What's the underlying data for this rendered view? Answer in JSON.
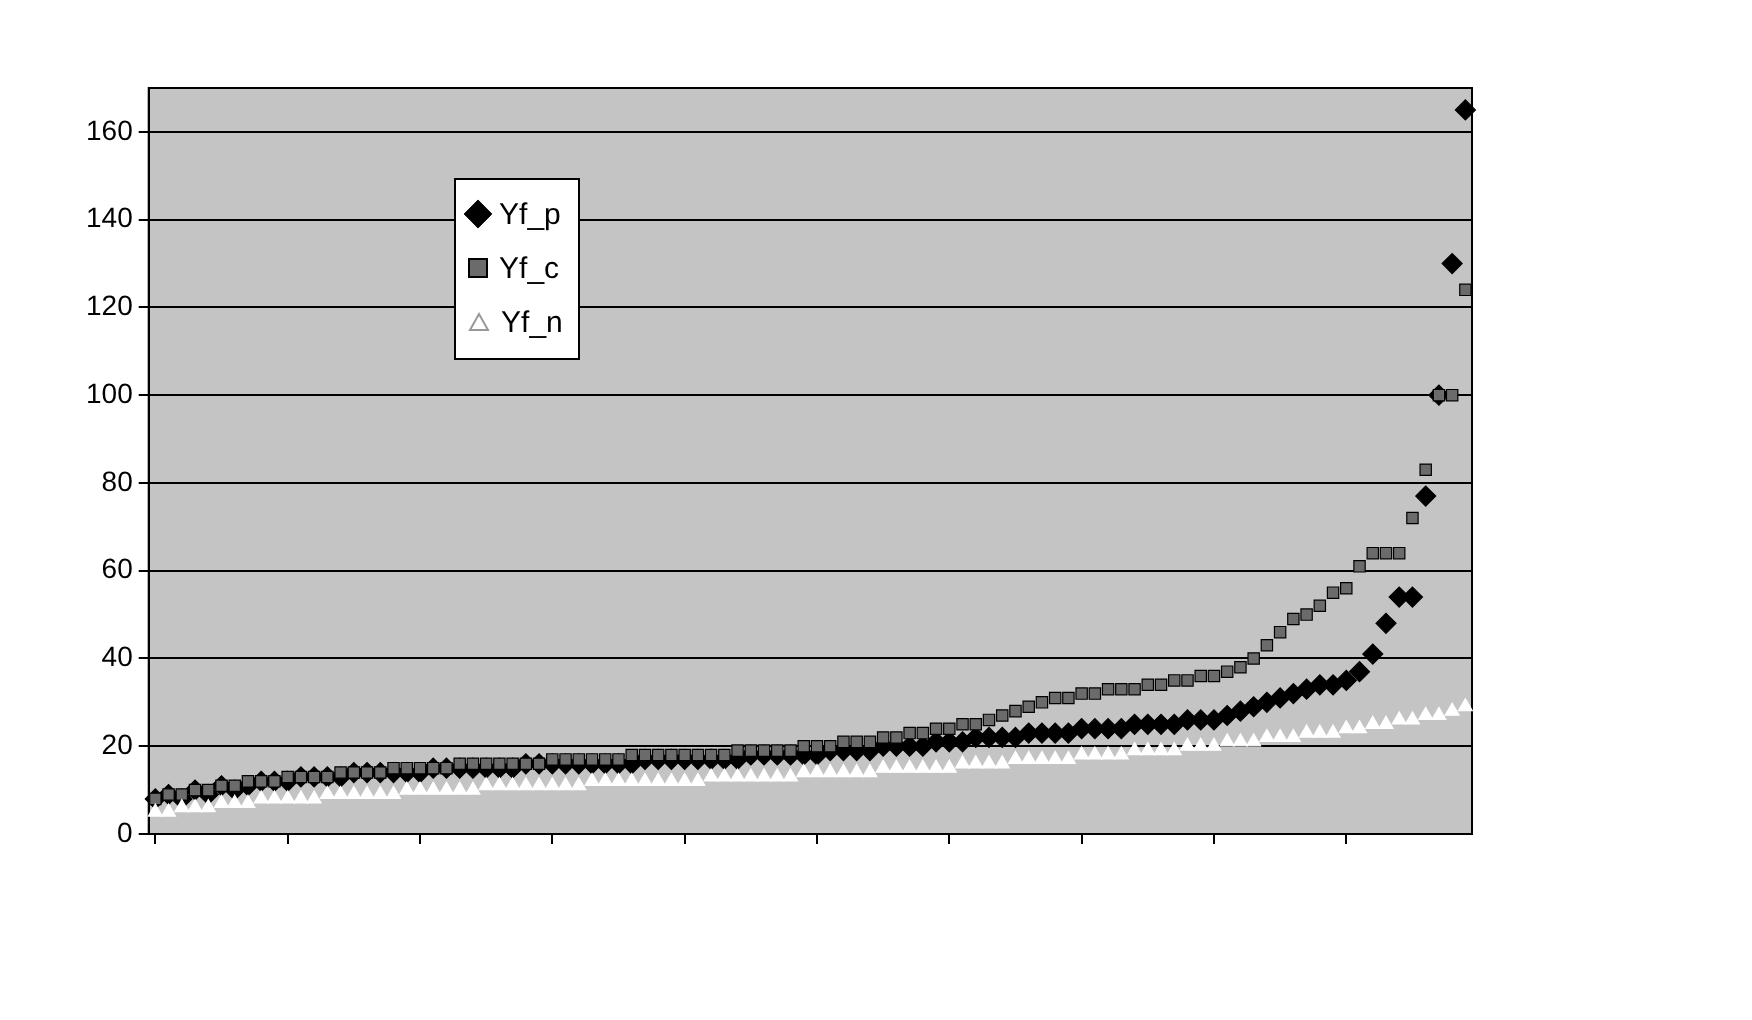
{
  "chart_data": {
    "type": "scatter",
    "categories": [
      null,
      null,
      null,
      null,
      null,
      null,
      null,
      null,
      null,
      null,
      null,
      null,
      null,
      null,
      null,
      null,
      null,
      null,
      null,
      null,
      null,
      null,
      null,
      null,
      null,
      null,
      null,
      null,
      null,
      null,
      null,
      null,
      null,
      null,
      null,
      null,
      null,
      null,
      null,
      null,
      null,
      null,
      null,
      null,
      null,
      null,
      null,
      null,
      null,
      null,
      null,
      null,
      null,
      null,
      null,
      null,
      null,
      null,
      null,
      null,
      null,
      null,
      null,
      null,
      null,
      null,
      null,
      null,
      null,
      null,
      null,
      null,
      null,
      null,
      null,
      null,
      null,
      null,
      null,
      null,
      null,
      null,
      null,
      null,
      null,
      null,
      null,
      null,
      null,
      null,
      null,
      null,
      null,
      null,
      null,
      null,
      null,
      null,
      null,
      null
    ],
    "series": [
      {
        "name": "Yf_n",
        "color": "#ffffff",
        "marker": "triangle",
        "values": [
          5,
          5,
          6,
          6,
          6,
          7,
          7,
          7,
          8,
          8,
          8,
          8,
          8,
          9,
          9,
          9,
          9,
          9,
          9,
          10,
          10,
          10,
          10,
          10,
          10,
          11,
          11,
          11,
          11,
          11,
          11,
          11,
          11,
          12,
          12,
          12,
          12,
          12,
          12,
          12,
          12,
          12,
          13,
          13,
          13,
          13,
          13,
          13,
          13,
          14,
          14,
          14,
          14,
          14,
          14,
          15,
          15,
          15,
          15,
          15,
          15,
          16,
          16,
          16,
          16,
          17,
          17,
          17,
          17,
          17,
          18,
          18,
          18,
          18,
          19,
          19,
          19,
          19,
          20,
          20,
          20,
          21,
          21,
          21,
          22,
          22,
          22,
          23,
          23,
          23,
          24,
          24,
          25,
          25,
          26,
          26,
          27,
          27,
          28,
          29
        ]
      },
      {
        "name": "Yf_c",
        "color": "#6b6b6b",
        "marker": "square",
        "values": [
          8,
          9,
          9,
          10,
          10,
          11,
          11,
          12,
          12,
          12,
          13,
          13,
          13,
          13,
          14,
          14,
          14,
          14,
          15,
          15,
          15,
          15,
          15,
          16,
          16,
          16,
          16,
          16,
          16,
          16,
          17,
          17,
          17,
          17,
          17,
          17,
          18,
          18,
          18,
          18,
          18,
          18,
          18,
          18,
          19,
          19,
          19,
          19,
          19,
          20,
          20,
          20,
          21,
          21,
          21,
          22,
          22,
          23,
          23,
          24,
          24,
          25,
          25,
          26,
          27,
          28,
          29,
          30,
          31,
          31,
          32,
          32,
          33,
          33,
          33,
          34,
          34,
          35,
          35,
          36,
          36,
          37,
          38,
          40,
          43,
          46,
          49,
          50,
          52,
          55,
          56,
          61,
          64,
          64,
          64,
          72,
          83,
          100,
          100,
          124
        ]
      },
      {
        "name": "Yf_p",
        "color": "#000000",
        "marker": "diamond",
        "values": [
          8,
          9,
          8,
          10,
          9,
          11,
          10,
          11,
          12,
          12,
          12,
          13,
          13,
          13,
          13,
          14,
          14,
          14,
          14,
          14,
          14,
          15,
          15,
          15,
          15,
          15,
          15,
          15,
          16,
          16,
          16,
          16,
          16,
          16,
          16,
          16,
          16,
          17,
          17,
          17,
          17,
          17,
          17,
          17,
          17,
          18,
          18,
          18,
          18,
          18,
          18,
          19,
          19,
          19,
          19,
          20,
          20,
          20,
          20,
          21,
          21,
          21,
          22,
          22,
          22,
          22,
          23,
          23,
          23,
          23,
          24,
          24,
          24,
          24,
          25,
          25,
          25,
          25,
          26,
          26,
          26,
          27,
          28,
          29,
          30,
          31,
          32,
          33,
          34,
          34,
          35,
          37,
          41,
          48,
          54,
          54,
          77,
          100,
          130,
          165
        ]
      }
    ],
    "ylim": [
      0,
      170
    ],
    "yticks": [
      0,
      20,
      40,
      60,
      80,
      100,
      120,
      140,
      160
    ],
    "grid": "y",
    "legend": "top left",
    "tick_labels": "y"
  }
}
